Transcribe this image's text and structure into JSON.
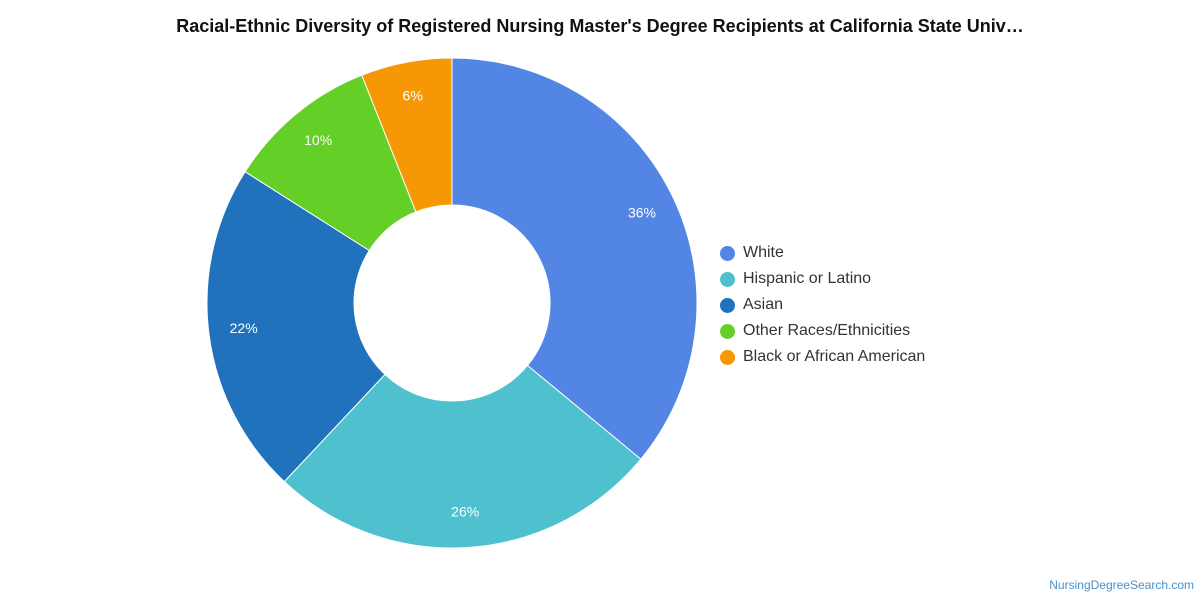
{
  "chart": {
    "title": "Racial-Ethnic Diversity of Registered Nursing Master's Degree Recipients at California State Univ…",
    "source": "NursingDegreeSearch.com"
  },
  "chart_data": {
    "type": "pie",
    "donut": true,
    "title": "Racial-Ethnic Diversity of Registered Nursing Master's Degree Recipients at California State Univ…",
    "legend_position": "right",
    "categories": [
      "White",
      "Hispanic or Latino",
      "Asian",
      "Other Races/Ethnicities",
      "Black or African American"
    ],
    "values": [
      36,
      26,
      22,
      10,
      6
    ],
    "labels": [
      "36%",
      "26%",
      "22%",
      "10%",
      "6%"
    ],
    "colors": [
      "#5386e4",
      "#4fc1ce",
      "#1f72bb",
      "#63cf27",
      "#f69705"
    ]
  }
}
